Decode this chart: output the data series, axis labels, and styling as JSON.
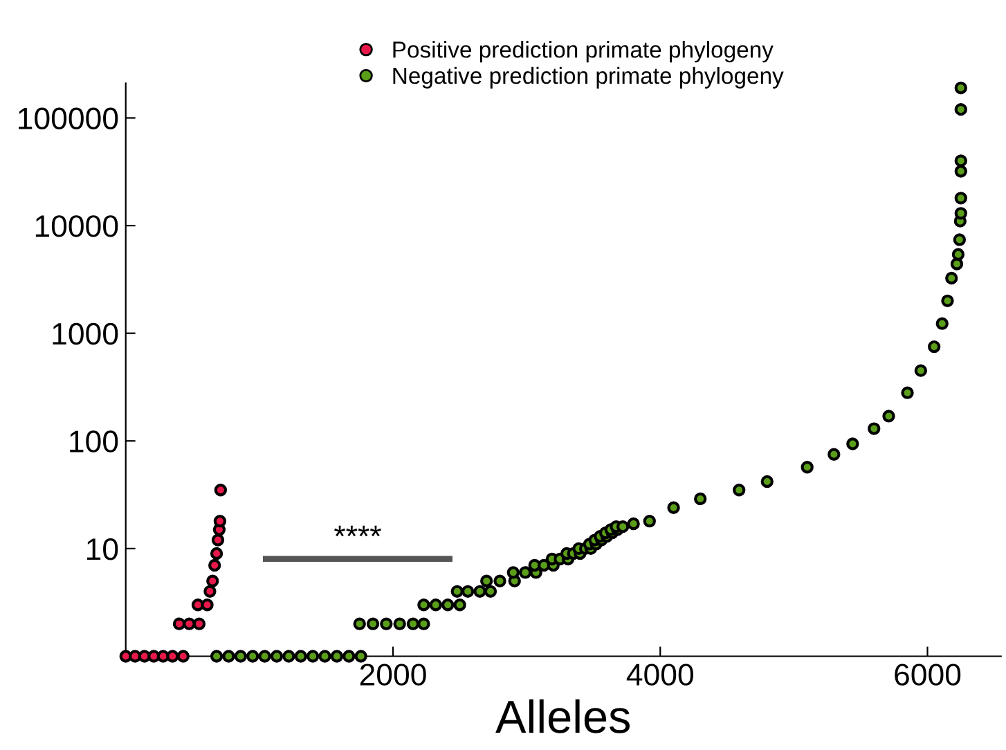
{
  "chart_data": {
    "type": "scatter",
    "xlabel": "Alleles",
    "annotations": [
      "****"
    ],
    "legend": "top",
    "marker": "circle",
    "log": "y",
    "grid": false,
    "xlim": [
      0,
      6550
    ],
    "xticks": [
      2000,
      4000,
      6000
    ],
    "ylim": [
      1,
      210000
    ],
    "yticks": [
      {
        "value": 1,
        "label": null
      },
      10,
      100,
      1000,
      10000,
      100000
    ],
    "series": [
      {
        "name": "Positive prediction primate phylogeny",
        "color": "#e8194a",
        "x": [
          0,
          70,
          140,
          210,
          280,
          350,
          430,
          400,
          475,
          550,
          540,
          610,
          630,
          650,
          665,
          680,
          690,
          700,
          705,
          710
        ],
        "values": [
          1,
          1,
          1,
          1,
          1,
          1,
          1,
          2,
          2,
          2,
          3,
          3,
          4,
          5,
          7,
          9,
          12,
          15,
          18,
          35
        ]
      },
      {
        "name": "Negative prediction primate phylogeny",
        "color": "#5a9e1a",
        "x": [
          680,
          770,
          860,
          950,
          1040,
          1130,
          1220,
          1310,
          1400,
          1490,
          1580,
          1670,
          1760,
          1750,
          1850,
          1950,
          2050,
          2150,
          2230,
          2230,
          2320,
          2410,
          2500,
          2480,
          2560,
          2650,
          2730,
          2700,
          2800,
          2910,
          2900,
          2990,
          3070,
          3060,
          3130,
          3200,
          3190,
          3250,
          3310,
          3300,
          3350,
          3400,
          3390,
          3440,
          3480,
          3470,
          3520,
          3510,
          3560,
          3550,
          3600,
          3590,
          3640,
          3630,
          3680,
          3670,
          3720,
          3800,
          3920,
          4100,
          4300,
          4590,
          4800,
          5100,
          5300,
          5440,
          5600,
          5710,
          5850,
          5950,
          6050,
          6110,
          6150,
          6180,
          6220,
          6230,
          6240,
          6245,
          6250,
          6250,
          6250,
          6250,
          6250,
          6250
        ],
        "values": [
          1,
          1,
          1,
          1,
          1,
          1,
          1,
          1,
          1,
          1,
          1,
          1,
          1,
          2,
          2,
          2,
          2,
          2,
          2,
          3,
          3,
          3,
          3,
          4,
          4,
          4,
          4,
          5,
          5,
          5,
          6,
          6,
          6,
          7,
          7,
          7,
          8,
          8,
          8,
          9,
          9,
          9,
          10,
          10,
          10,
          11,
          11,
          12,
          12,
          13,
          13,
          14,
          14,
          15,
          15,
          16,
          16,
          17,
          18,
          24,
          29,
          35,
          42,
          57,
          75,
          94,
          130,
          170,
          280,
          450,
          750,
          1230,
          2000,
          3250,
          4400,
          5400,
          7400,
          11000,
          13000,
          18000,
          32000,
          40000,
          120000,
          190000
        ]
      }
    ]
  }
}
